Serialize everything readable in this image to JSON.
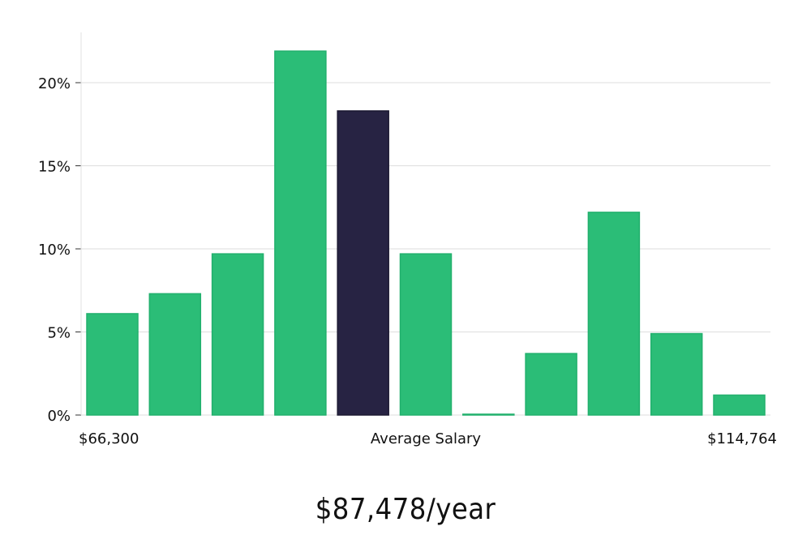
{
  "chart_data": {
    "type": "bar",
    "title": "",
    "xlabel": "Average Salary",
    "ylabel": "",
    "ylim": [
      0,
      23
    ],
    "yticks": [
      0,
      5,
      10,
      15,
      20
    ],
    "ytick_labels": [
      "0%",
      "5%",
      "10%",
      "15%",
      "20%"
    ],
    "x_min_label": "$66,300",
    "x_max_label": "$114,764",
    "values": [
      6.1,
      7.3,
      9.7,
      21.9,
      18.3,
      9.7,
      0.05,
      3.7,
      12.2,
      4.9,
      1.2
    ],
    "highlight_index": 4,
    "grid": true
  },
  "summary": {
    "salary_text": "$87,478/year"
  },
  "colors": {
    "bar": "#2bbd77",
    "bar_highlight": "#272343",
    "grid": "#dddddd",
    "axis": "#e0e0e0"
  }
}
